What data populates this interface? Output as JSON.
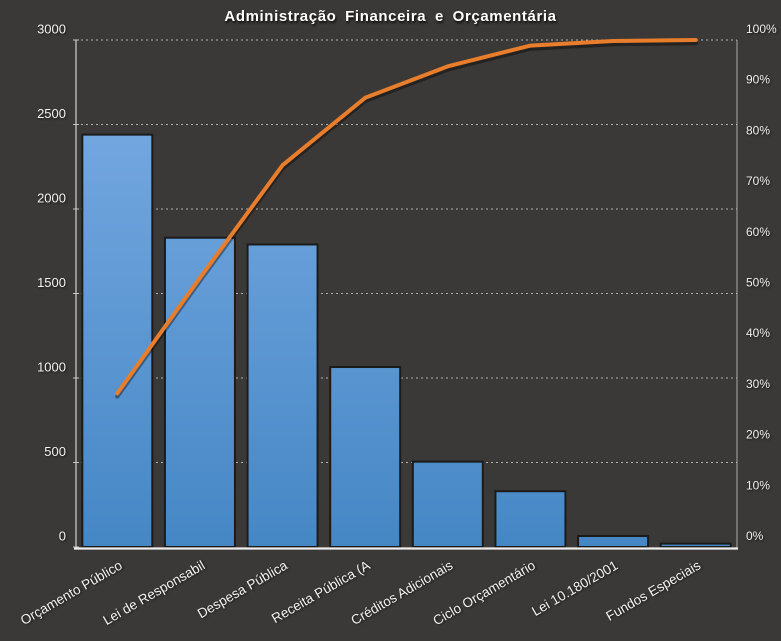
{
  "chart_data": {
    "type": "bar",
    "subtype": "pareto",
    "title": "Administração Financeira e Orçamentária",
    "categories": [
      "Orçamento Público",
      "Lei de Responsabil",
      "Despesa Pública",
      "Receita Pública (A",
      "Créditos Adicionais",
      "Ciclo Orçamentário",
      "Lei 10.180/2001",
      "Fundos Especiais"
    ],
    "series": [
      {
        "name": "frequency-bars",
        "type": "bar",
        "values": [
          2440,
          1830,
          1790,
          1065,
          505,
          330,
          65,
          20
        ]
      },
      {
        "name": "cumulative-percent-line",
        "type": "line",
        "values": [
          30.3,
          53.1,
          75.3,
          88.6,
          94.8,
          98.9,
          99.8,
          100
        ]
      }
    ],
    "axis_left": {
      "min": 0,
      "max": 3000,
      "step": 500,
      "tick_labels": [
        "0",
        "500",
        "1000",
        "1500",
        "2000",
        "2500",
        "3000"
      ]
    },
    "axis_right": {
      "min": 0,
      "max": 100,
      "step": 10,
      "tick_labels": [
        "0%",
        "10%",
        "20%",
        "30%",
        "40%",
        "50%",
        "60%",
        "70%",
        "80%",
        "90%",
        "100%"
      ]
    },
    "xlabel": "",
    "ylabel": "",
    "grid": "horizontal-dashed",
    "legend": "none",
    "colors": {
      "background": "#3b3938",
      "bar_gradient_top": "#75a8e1",
      "bar_gradient_bottom": "#4587c5",
      "bar_border": "#1b1b1b",
      "line": "#e87d2c",
      "gridline": "#c6c4c2",
      "axis_line": "#c8c6c4",
      "baseline": "#f0eeec",
      "tick_text": "#f3f2f0"
    }
  }
}
